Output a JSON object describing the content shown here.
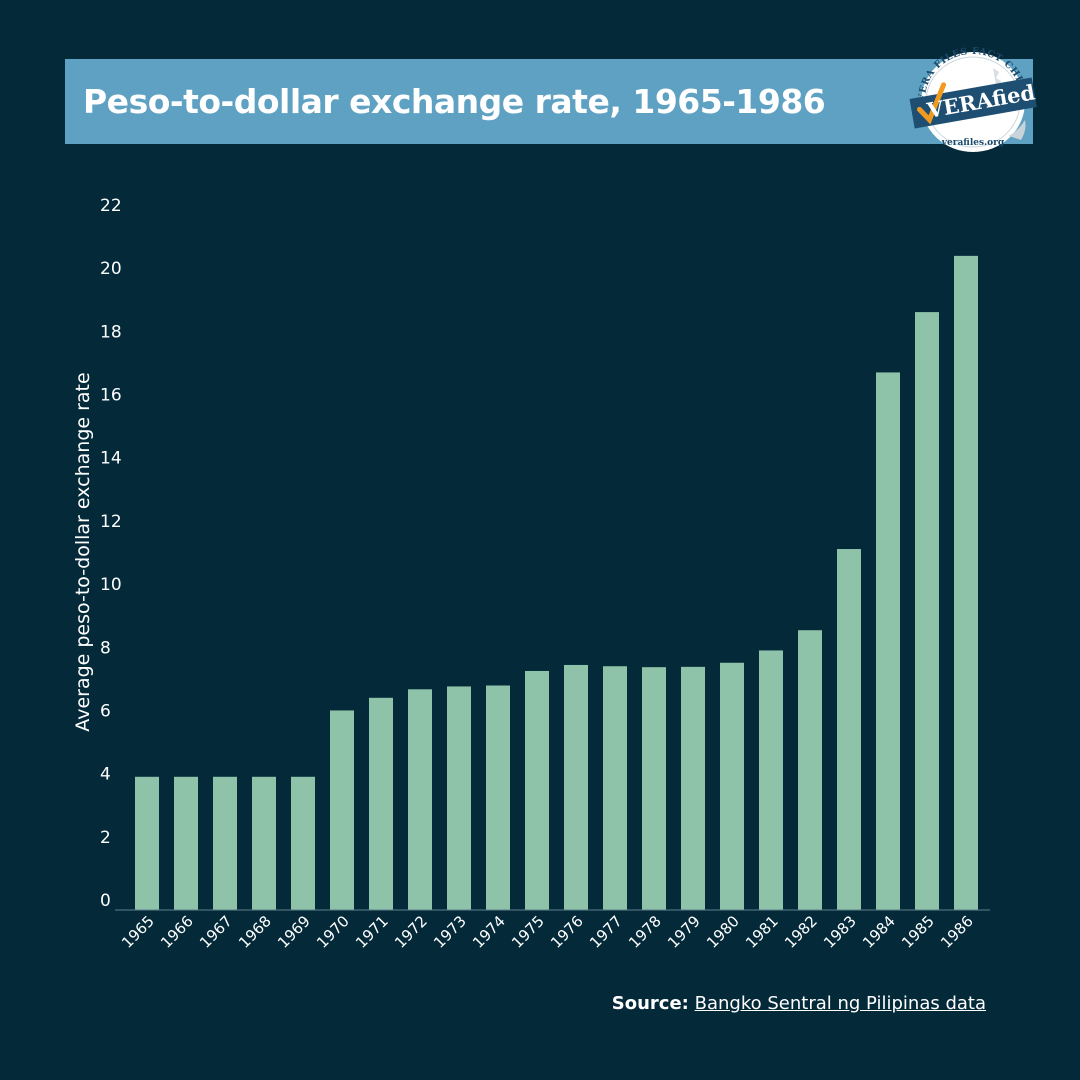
{
  "header": {
    "title": "Peso-to-dollar exchange rate, 1965-1986"
  },
  "badge": {
    "top_text": "VERA FILES FACT CHECK",
    "brand": "VERAfied",
    "url": "verafiles.org"
  },
  "source": {
    "label": "Source:",
    "link_text": "Bangko Sentral ng Pilipinas data"
  },
  "colors": {
    "background": "#042a3a",
    "title_band": "#5ea1c2",
    "bar": "#8ec3a9",
    "text": "#ffffff",
    "badge_check": "#f29a1f"
  },
  "chart_data": {
    "type": "bar",
    "title": "Peso-to-dollar exchange rate, 1965-1986",
    "xlabel": "",
    "ylabel": "Average peso-to-dollar exchange rate",
    "ylim": [
      0,
      22
    ],
    "yticks": [
      0,
      2,
      4,
      6,
      8,
      10,
      12,
      14,
      16,
      18,
      20,
      22
    ],
    "grid": false,
    "categories": [
      "1965",
      "1966",
      "1967",
      "1968",
      "1969",
      "1970",
      "1971",
      "1972",
      "1973",
      "1974",
      "1975",
      "1976",
      "1977",
      "1978",
      "1979",
      "1980",
      "1981",
      "1982",
      "1983",
      "1984",
      "1985",
      "1986"
    ],
    "values": [
      3.9,
      3.9,
      3.9,
      3.9,
      3.9,
      6.0,
      6.4,
      6.67,
      6.76,
      6.79,
      7.25,
      7.44,
      7.4,
      7.37,
      7.38,
      7.51,
      7.9,
      8.54,
      11.11,
      16.7,
      18.61,
      20.39
    ]
  }
}
